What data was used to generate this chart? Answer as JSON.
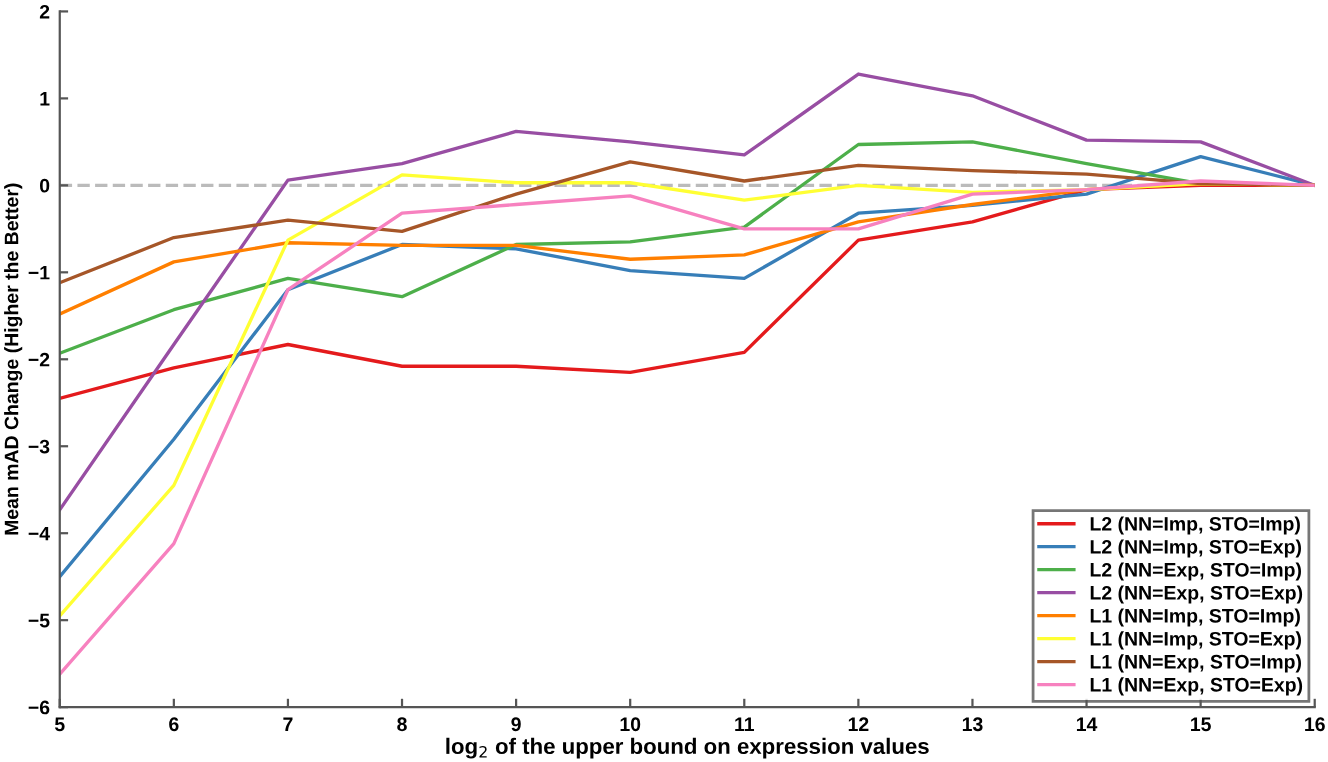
{
  "chart_data": {
    "type": "line",
    "xlabel": "log$_{2}$ of the upper bound on expression values",
    "ylabel": "Mean mAD Change (Higher the Better)",
    "x": [
      5,
      6,
      7,
      8,
      9,
      10,
      11,
      12,
      13,
      14,
      15,
      16
    ],
    "xlim": [
      5,
      16
    ],
    "xticks": [
      5,
      6,
      7,
      8,
      9,
      10,
      11,
      12,
      13,
      14,
      15,
      16
    ],
    "ylim": [
      -6,
      2
    ],
    "yticks": [
      -6,
      -5,
      -4,
      -3,
      -2,
      -1,
      0,
      1,
      2
    ],
    "grid": false,
    "legend": "bottom right",
    "marker": "none",
    "line_style": "solid",
    "ref_lines": [
      {
        "axis": "y",
        "value": 0,
        "color": "#bbbbbb",
        "line_style": "dashed"
      }
    ],
    "series": [
      {
        "name": "L2 (NN=Imp, STO=Imp)",
        "color": "#e41a1c",
        "values": [
          -2.45,
          -2.1,
          -1.83,
          -2.08,
          -2.08,
          -2.15,
          -1.92,
          -0.63,
          -0.42,
          -0.05,
          0.0,
          0.0
        ]
      },
      {
        "name": "L2 (NN=Imp, STO=Exp)",
        "color": "#377eb8",
        "values": [
          -4.5,
          -2.92,
          -1.2,
          -0.68,
          -0.73,
          -0.98,
          -1.07,
          -0.32,
          -0.23,
          -0.1,
          0.33,
          0.0
        ]
      },
      {
        "name": "L2 (NN=Exp, STO=Imp)",
        "color": "#4daf4a",
        "values": [
          -1.93,
          -1.43,
          -1.07,
          -1.28,
          -0.68,
          -0.65,
          -0.48,
          0.47,
          0.5,
          0.25,
          0.02,
          0.0
        ]
      },
      {
        "name": "L2 (NN=Exp, STO=Exp)",
        "color": "#984ea3",
        "values": [
          -3.73,
          -1.83,
          0.06,
          0.25,
          0.62,
          0.5,
          0.35,
          1.28,
          1.03,
          0.52,
          0.5,
          0.0
        ]
      },
      {
        "name": "L1 (NN=Imp, STO=Imp)",
        "color": "#ff7f00",
        "values": [
          -1.48,
          -0.88,
          -0.66,
          -0.69,
          -0.69,
          -0.85,
          -0.8,
          -0.42,
          -0.22,
          -0.05,
          0.02,
          0.0
        ]
      },
      {
        "name": "L1 (NN=Imp, STO=Exp)",
        "color": "#ffff33",
        "values": [
          -4.95,
          -3.45,
          -0.63,
          0.12,
          0.03,
          0.03,
          -0.17,
          0.0,
          -0.08,
          -0.05,
          0.02,
          0.0
        ]
      },
      {
        "name": "L1 (NN=Exp, STO=Imp)",
        "color": "#a65628",
        "values": [
          -1.12,
          -0.6,
          -0.4,
          -0.53,
          -0.1,
          0.27,
          0.05,
          0.23,
          0.17,
          0.13,
          0.02,
          0.0
        ]
      },
      {
        "name": "L1 (NN=Exp, STO=Exp)",
        "color": "#f781bf",
        "values": [
          -5.62,
          -4.12,
          -1.2,
          -0.32,
          -0.22,
          -0.12,
          -0.5,
          -0.5,
          -0.1,
          -0.05,
          0.05,
          0.0
        ]
      }
    ]
  }
}
